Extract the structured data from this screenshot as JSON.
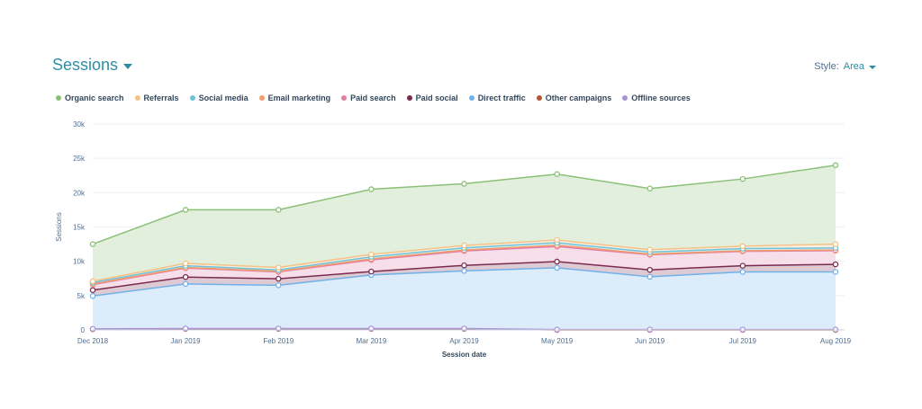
{
  "header": {
    "title": "Sessions",
    "style_label": "Style:",
    "style_value": "Area"
  },
  "chart_data": {
    "type": "area",
    "stacked": true,
    "xlabel": "Session date",
    "ylabel": "Sessions",
    "ylim": [
      0,
      30000
    ],
    "yticks": [
      0,
      5000,
      10000,
      15000,
      20000,
      25000,
      30000
    ],
    "ytick_labels": [
      "0",
      "5k",
      "10k",
      "15k",
      "20k",
      "25k",
      "30k"
    ],
    "categories": [
      "Dec 2018",
      "Jan 2019",
      "Feb 2019",
      "Mar 2019",
      "Apr 2019",
      "May 2019",
      "Jun 2019",
      "Jul 2019",
      "Aug 2019"
    ],
    "grid": true,
    "legend_position": "top-left",
    "series": [
      {
        "name": "Other campaigns",
        "color": "#b5563b",
        "values": [
          100,
          150,
          150,
          150,
          150,
          0,
          0,
          0,
          0
        ]
      },
      {
        "name": "Offline sources",
        "color": "#a993d6",
        "values": [
          50,
          50,
          50,
          50,
          50,
          50,
          50,
          50,
          50
        ]
      },
      {
        "name": "Direct traffic",
        "color": "#71b1ea",
        "values": [
          4800,
          6500,
          6300,
          7800,
          8400,
          9000,
          7700,
          8400,
          8400
        ]
      },
      {
        "name": "Paid social",
        "color": "#7a2b4f",
        "values": [
          850,
          1000,
          950,
          500,
          800,
          900,
          1000,
          900,
          1100
        ]
      },
      {
        "name": "Paid search",
        "color": "#e07ea5",
        "values": [
          800,
          1300,
          1000,
          1700,
          2100,
          2200,
          2200,
          2100,
          2000
        ]
      },
      {
        "name": "Email marketing",
        "color": "#f09d6a",
        "values": [
          100,
          100,
          100,
          150,
          150,
          200,
          100,
          100,
          100
        ]
      },
      {
        "name": "Social media",
        "color": "#6fc3d9",
        "values": [
          200,
          250,
          200,
          300,
          300,
          350,
          300,
          300,
          300
        ]
      },
      {
        "name": "Referrals",
        "color": "#f5c285",
        "values": [
          200,
          350,
          350,
          350,
          350,
          400,
          350,
          350,
          550
        ]
      },
      {
        "name": "Organic search",
        "color": "#8cc077",
        "values": [
          5400,
          7800,
          8400,
          9500,
          9000,
          9600,
          8900,
          9800,
          11500
        ]
      }
    ]
  }
}
